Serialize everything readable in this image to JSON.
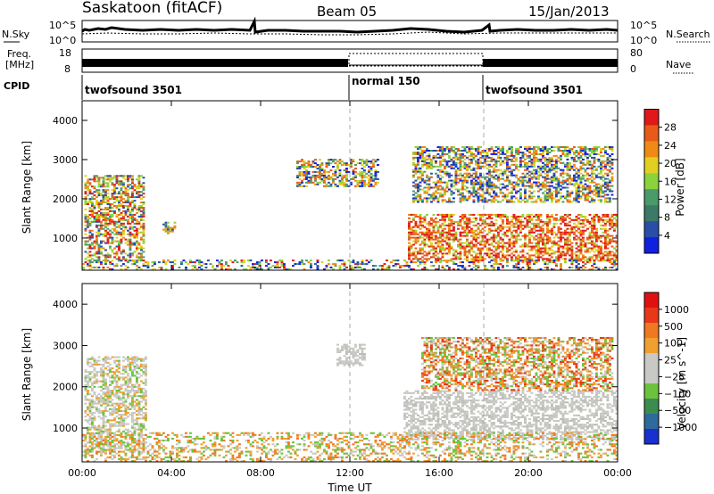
{
  "header": {
    "site": "Saskatoon (fitACF)",
    "beam": "Beam 05",
    "date": "15/Jan/2013"
  },
  "status_panels": {
    "noise": {
      "left_label": "N.Sky",
      "left_top": "10^5",
      "left_bottom": "10^0",
      "right_top": "10^5",
      "right_bottom": "10^0",
      "right_label": "N.Search"
    },
    "freq": {
      "left_label_1": "Freq.",
      "left_label_2": "[MHz]",
      "left_top": "18",
      "left_bottom": "8",
      "right_top": "80",
      "right_bottom": "0",
      "right_label": "Nave"
    },
    "cpid": {
      "label": "CPID",
      "segments": [
        {
          "text": "twofsound 3501",
          "start_hr": 0
        },
        {
          "text": "normal 150",
          "start_hr": 12
        },
        {
          "text": "twofsound 3501",
          "start_hr": 18
        }
      ]
    }
  },
  "x_axis": {
    "label": "Time UT",
    "ticks": [
      "00:00",
      "04:00",
      "08:00",
      "12:00",
      "16:00",
      "20:00",
      "00:00"
    ]
  },
  "chart_data": [
    {
      "type": "heatmap",
      "name": "power",
      "ylabel": "Slant Range [km]",
      "xlim_hr": [
        0,
        24
      ],
      "ylim_km": [
        180,
        4500
      ],
      "y_ticks": [
        1000,
        2000,
        3000,
        4000
      ],
      "colorbar": {
        "label": "Power [dB]",
        "ticks": [
          "4",
          "8",
          "12",
          "16",
          "20",
          "24",
          "28"
        ],
        "colors": [
          "#1020e0",
          "#2a4ea8",
          "#3c7a68",
          "#4a9a6a",
          "#8cd23c",
          "#e2d020",
          "#f08a14",
          "#e85a18",
          "#e01818"
        ]
      },
      "regions": [
        {
          "t0": 0.1,
          "t1": 2.8,
          "r0": 400,
          "r1": 2600,
          "level": "mixed-high"
        },
        {
          "t0": 3.6,
          "t1": 4.2,
          "r0": 1100,
          "r1": 1400,
          "level": "medium"
        },
        {
          "t0": 9.6,
          "t1": 13.2,
          "r0": 2300,
          "r1": 3000,
          "level": "mixed"
        },
        {
          "t0": 14.6,
          "t1": 24,
          "r0": 400,
          "r1": 1600,
          "level": "high"
        },
        {
          "t0": 14.8,
          "t1": 23.8,
          "r0": 1900,
          "r1": 3300,
          "level": "mixed"
        },
        {
          "t0": 0,
          "t1": 24,
          "r0": 180,
          "r1": 420,
          "level": "low"
        }
      ]
    },
    {
      "type": "heatmap",
      "name": "velocity",
      "ylabel": "Slant Range [km]",
      "xlim_hr": [
        0,
        24
      ],
      "ylim_km": [
        180,
        4500
      ],
      "y_ticks": [
        1000,
        2000,
        3000,
        4000
      ],
      "colorbar": {
        "label": "Velocity [m s^-1]",
        "ticks": [
          "1000",
          "500",
          "100",
          "25",
          "−25",
          "−100",
          "−500",
          "−1000"
        ],
        "colors": [
          "#1830d0",
          "#2e6a9a",
          "#3c8c50",
          "#6cc23c",
          "#c8c8c4",
          "#c8c8c4",
          "#f0a030",
          "#f07820",
          "#e83818",
          "#e01010"
        ]
      },
      "regions": [
        {
          "t0": 0.1,
          "t1": 2.9,
          "r0": 400,
          "r1": 2700,
          "level": "mixed-grey"
        },
        {
          "t0": 11.4,
          "t1": 12.6,
          "r0": 2500,
          "r1": 3000,
          "level": "grey"
        },
        {
          "t0": 14.4,
          "t1": 24,
          "r0": 700,
          "r1": 1900,
          "level": "grey"
        },
        {
          "t0": 15.2,
          "t1": 23.8,
          "r0": 1900,
          "r1": 3200,
          "level": "orange"
        },
        {
          "t0": 0,
          "t1": 24,
          "r0": 180,
          "r1": 900,
          "level": "low-orange"
        }
      ]
    }
  ]
}
